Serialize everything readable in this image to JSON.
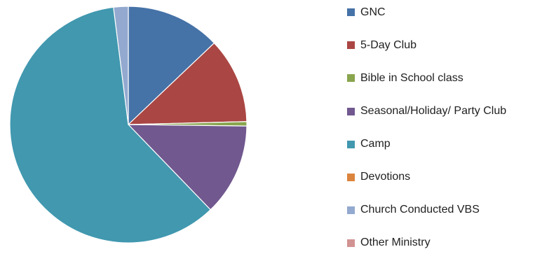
{
  "chart_data": {
    "type": "pie",
    "title": "",
    "start_angle_deg": 0,
    "direction": "clockwise",
    "legend_position": "right",
    "series": [
      {
        "name": "GNC",
        "value": 12.9,
        "color": "#4572A7"
      },
      {
        "name": "5-Day Club",
        "value": 11.7,
        "color": "#AA4643"
      },
      {
        "name": "Bible in School class",
        "value": 0.6,
        "color": "#89A54E"
      },
      {
        "name": "Seasonal/Holiday/  Party Club",
        "value": 12.6,
        "color": "#71588F"
      },
      {
        "name": "Camp",
        "value": 60.2,
        "color": "#4198AF"
      },
      {
        "name": "Devotions",
        "value": 0.0,
        "color": "#DB843D"
      },
      {
        "name": "Church Conducted VBS",
        "value": 2.0,
        "color": "#93A9CF"
      },
      {
        "name": "Other Ministry",
        "value": 0.0,
        "color": "#D19392"
      }
    ]
  }
}
